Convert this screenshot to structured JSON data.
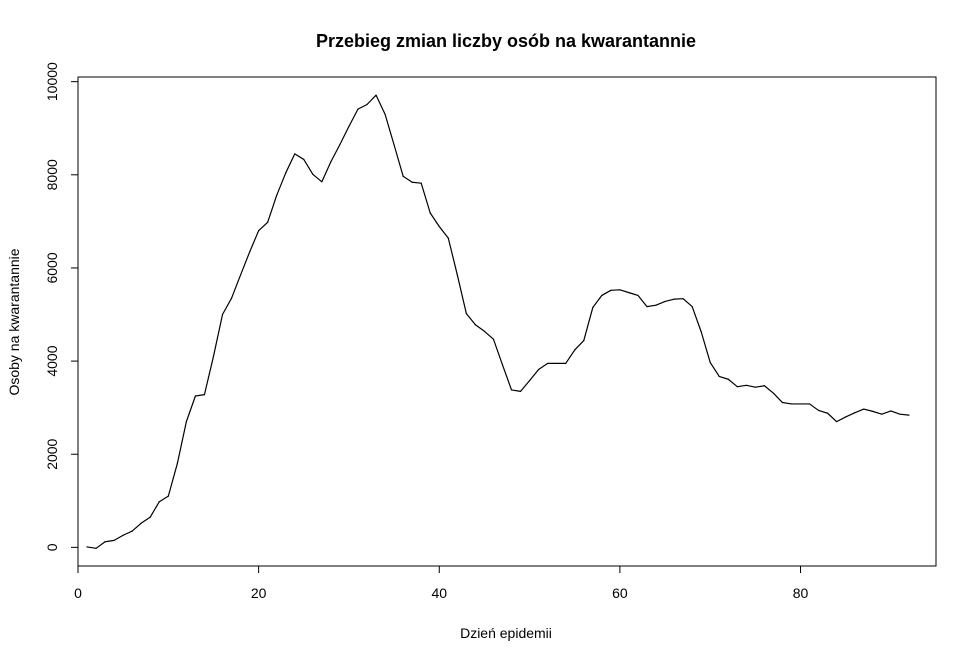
{
  "chart_data": {
    "type": "line",
    "title": "Przebieg zmian liczby osób na kwarantannie",
    "xlabel": "Dzień epidemii",
    "ylabel": "Osoby na kwarantannie",
    "xlim": [
      0,
      95
    ],
    "ylim": [
      -400,
      10100
    ],
    "xticks": [
      0,
      20,
      40,
      60,
      80
    ],
    "yticks": [
      0,
      2000,
      4000,
      6000,
      8000,
      10000
    ],
    "grid": false,
    "line_color": "#000000",
    "series": [
      {
        "x": [
          1,
          2,
          3,
          4,
          5,
          6,
          7,
          8,
          9,
          10,
          11,
          12,
          13,
          14,
          15,
          16,
          17,
          18,
          19,
          20,
          21,
          22,
          23,
          24,
          25,
          26,
          27,
          28,
          29,
          30,
          31,
          32,
          33,
          34,
          35,
          36,
          37,
          38,
          39,
          40,
          41,
          42,
          43,
          44,
          45,
          46,
          47,
          48,
          49,
          50,
          51,
          52,
          53,
          54,
          55,
          56,
          57,
          58,
          59,
          60,
          61,
          62,
          63,
          64,
          65,
          66,
          67,
          68,
          69,
          70,
          71,
          72,
          73,
          74,
          75,
          76,
          77,
          78,
          79,
          80,
          81,
          82,
          83,
          84,
          85,
          86,
          87,
          88,
          89,
          90,
          91,
          92
        ],
        "y": [
          10,
          -20,
          120,
          150,
          260,
          350,
          520,
          650,
          980,
          1100,
          1800,
          2700,
          3250,
          3280,
          4100,
          5000,
          5350,
          5850,
          6340,
          6800,
          6980,
          7560,
          8040,
          8450,
          8330,
          8010,
          7850,
          8280,
          8650,
          9040,
          9410,
          9510,
          9710,
          9300,
          8640,
          7970,
          7840,
          7820,
          7180,
          6890,
          6640,
          5850,
          5020,
          4780,
          4640,
          4470,
          3920,
          3380,
          3350,
          3580,
          3820,
          3950,
          3950,
          3950,
          4240,
          4440,
          5150,
          5410,
          5520,
          5530,
          5470,
          5410,
          5170,
          5200,
          5280,
          5330,
          5340,
          5170,
          4630,
          3970,
          3670,
          3610,
          3450,
          3480,
          3440,
          3470,
          3310,
          3110,
          3080,
          3080,
          3080,
          2940,
          2880,
          2700,
          2800,
          2890,
          2970,
          2920,
          2860,
          2930,
          2860,
          2840
        ]
      }
    ]
  }
}
